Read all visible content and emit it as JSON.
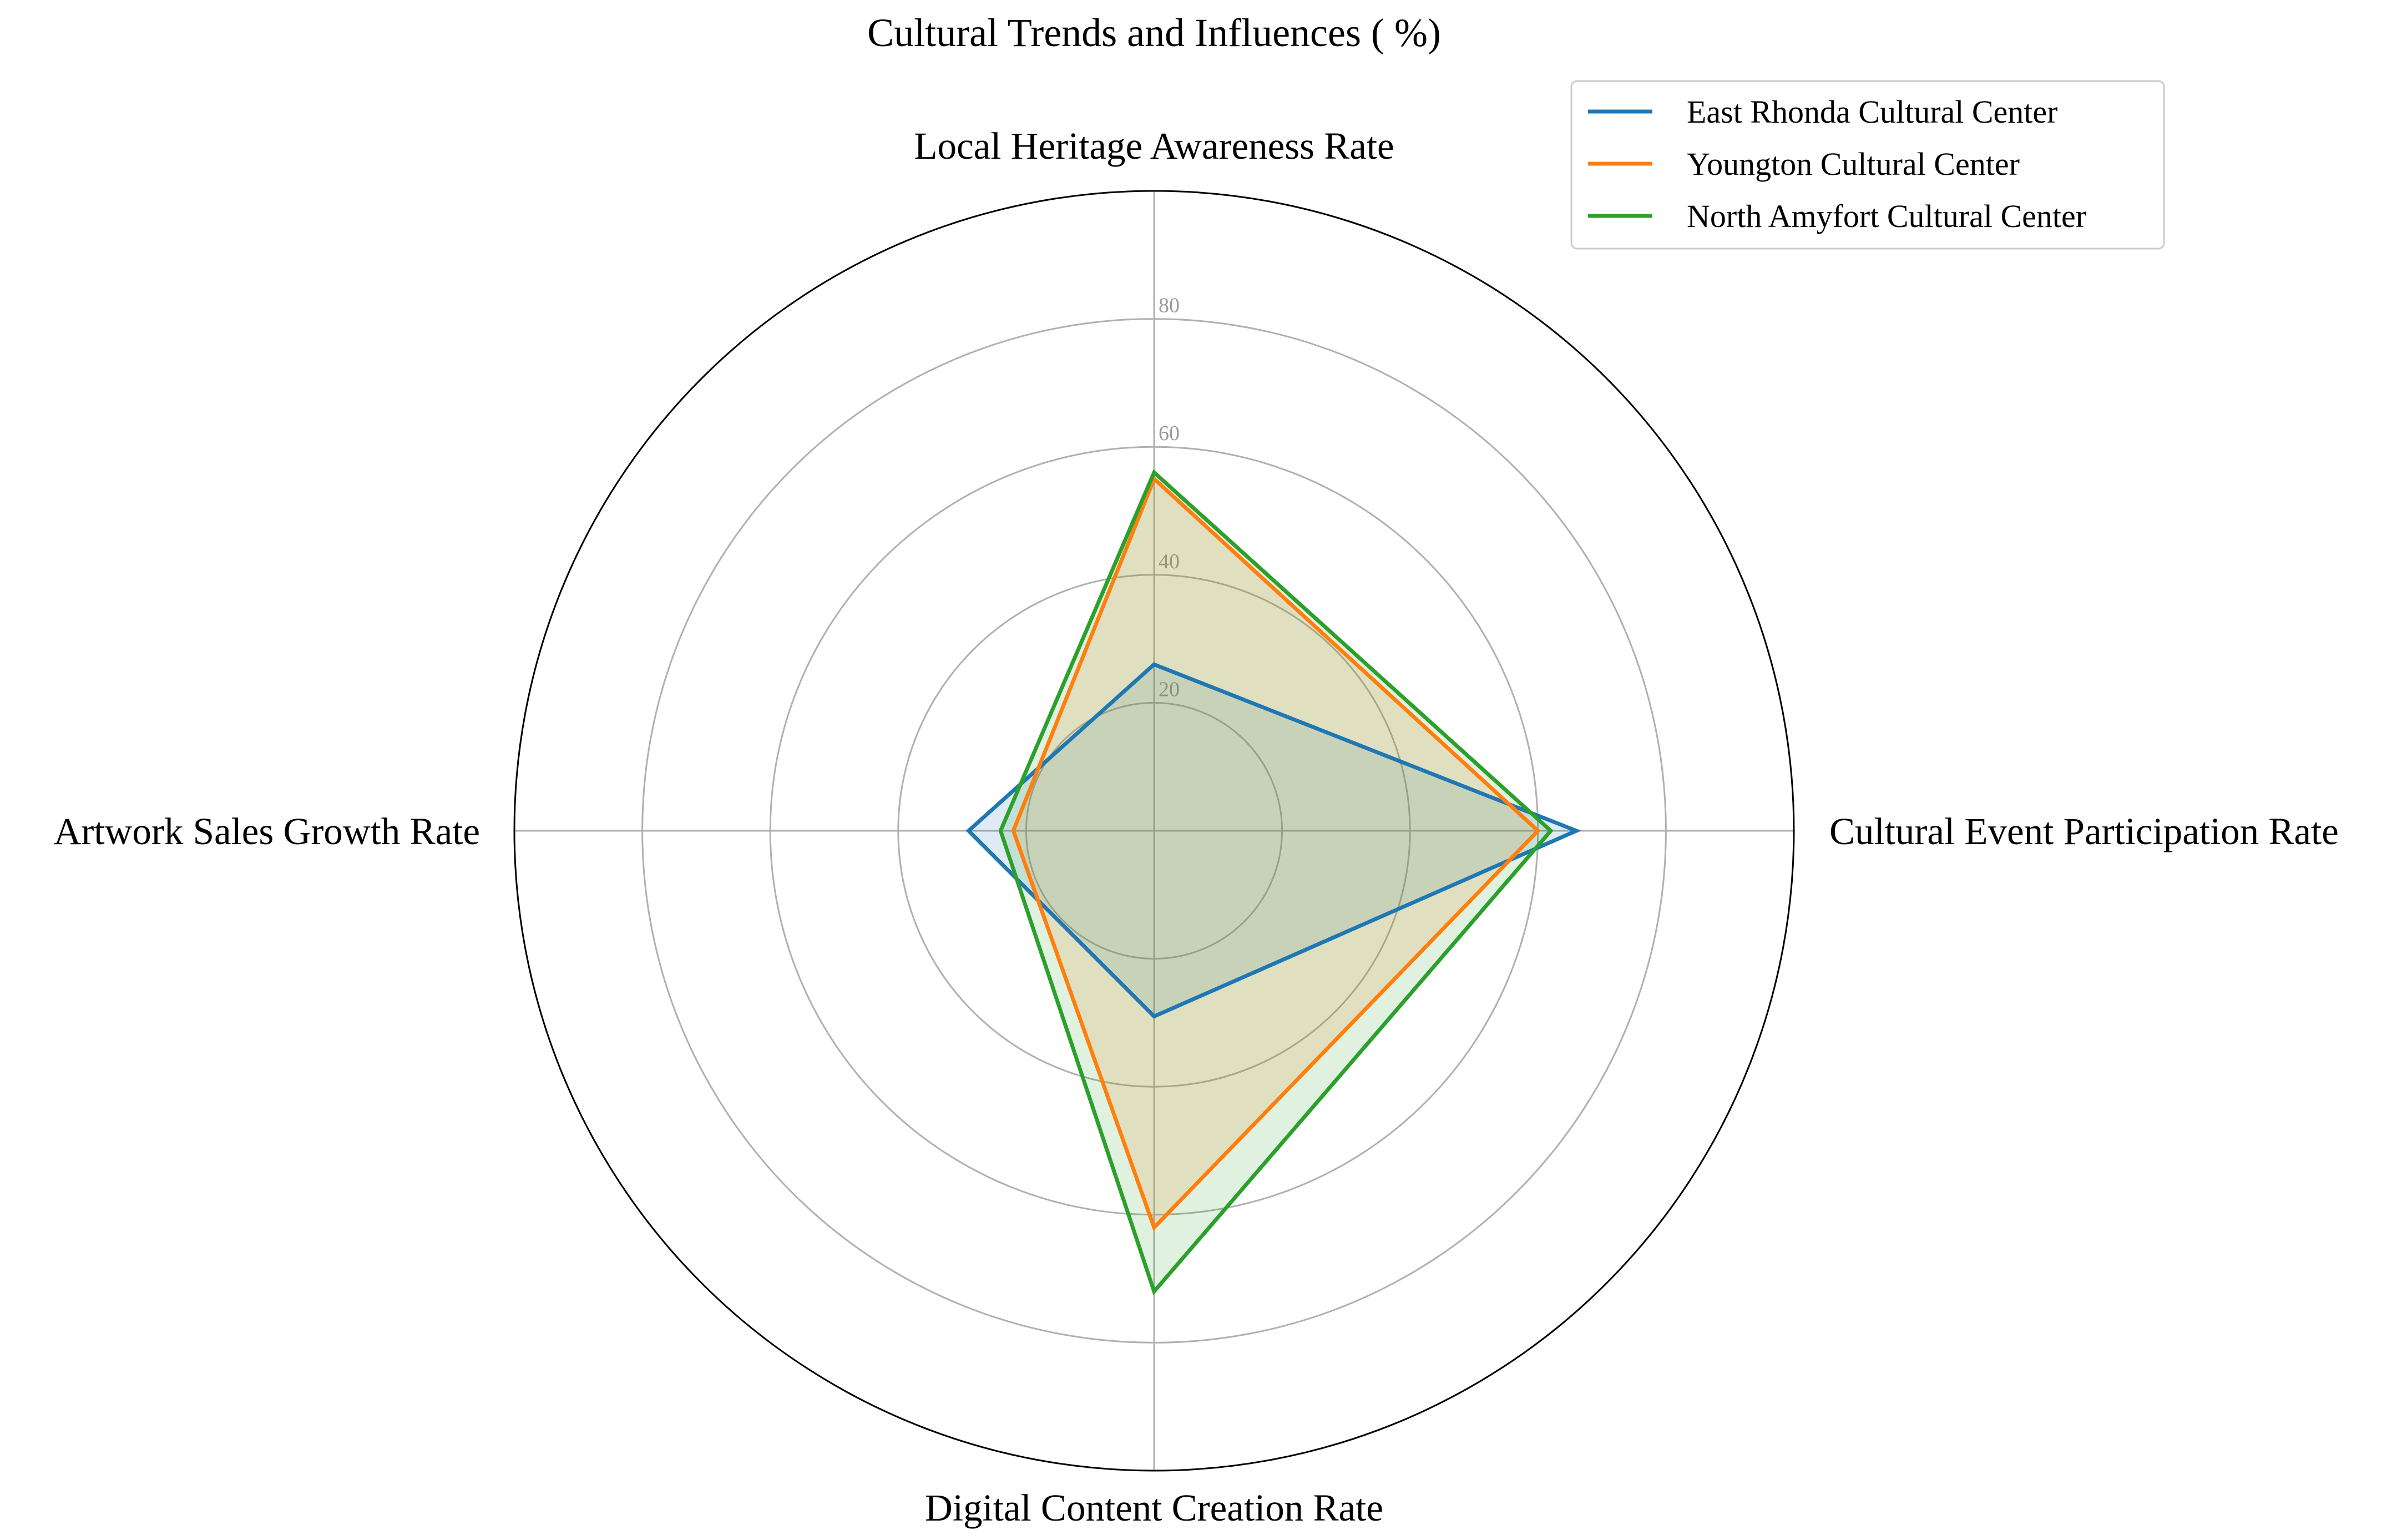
{
  "chart_data": {
    "type": "radar",
    "title": "Cultural Trends and Influences ( %)",
    "categories": [
      "Local Heritage Awareness Rate",
      "Cultural Event Participation Rate",
      "Digital Content Creation Rate",
      "Artwork Sales Growth Rate"
    ],
    "rlim": [
      0,
      100
    ],
    "rticks": [
      "20",
      "40",
      "60",
      "80"
    ],
    "rtick_values": [
      20,
      40,
      60,
      80
    ],
    "grid": true,
    "legend_position": "top-right",
    "series": [
      {
        "name": "East Rhonda Cultural Center",
        "color": "#1f77b4",
        "values": [
          26,
          66,
          29,
          29
        ]
      },
      {
        "name": "Youngton Cultural Center",
        "color": "#ff7f0e",
        "values": [
          55,
          60,
          62,
          22
        ]
      },
      {
        "name": "North Amyfort Cultural Center",
        "color": "#2ca02c",
        "values": [
          56,
          62,
          72,
          24
        ]
      }
    ]
  }
}
